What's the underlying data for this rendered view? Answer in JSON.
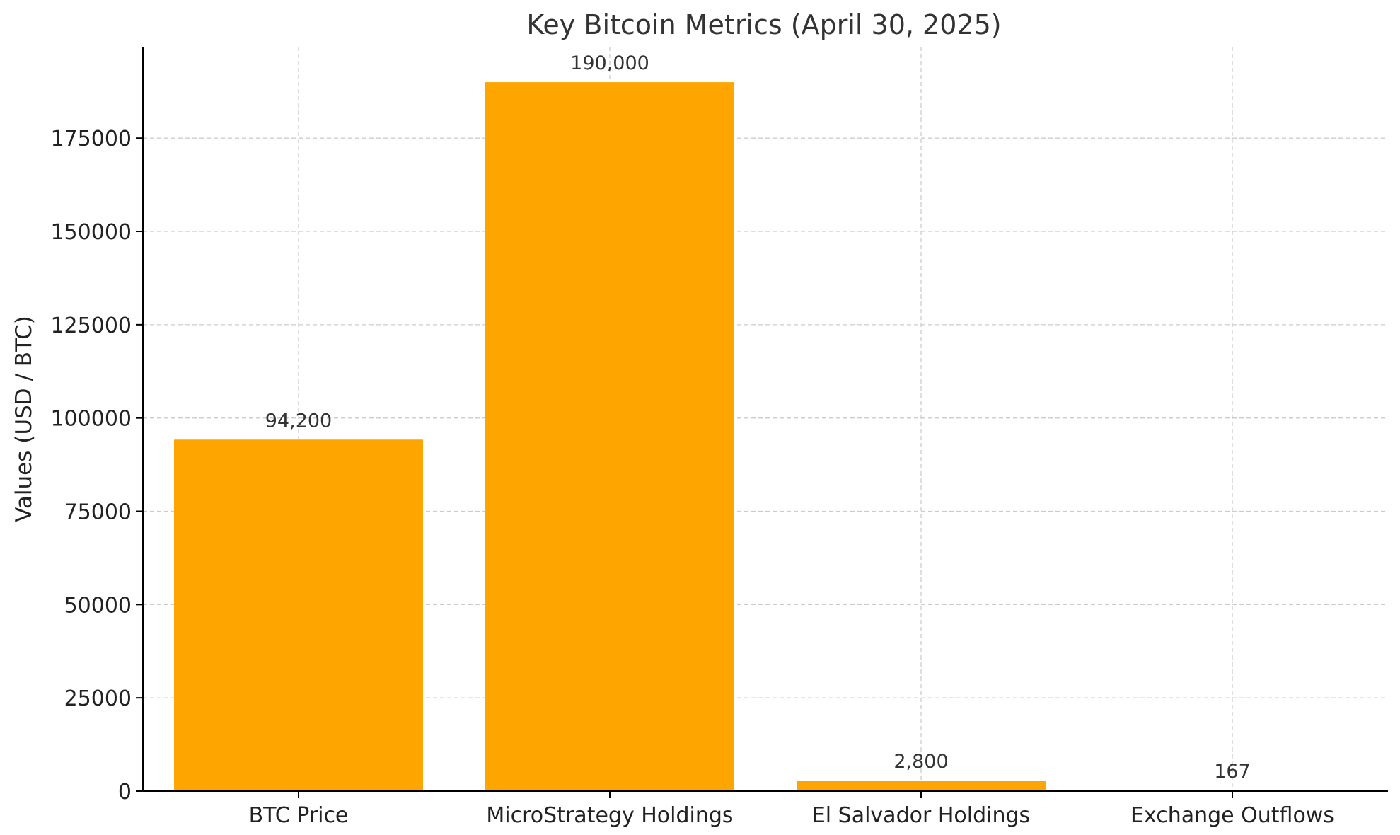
{
  "chart_data": {
    "type": "bar",
    "title": "Key Bitcoin Metrics (April 30, 2025)",
    "xlabel": "",
    "ylabel": "Values (USD / BTC)",
    "categories": [
      "BTC Price",
      "MicroStrategy Holdings",
      "El Salvador Holdings",
      "Exchange Outflows"
    ],
    "values": [
      94200,
      190000,
      2800,
      167
    ],
    "data_labels": [
      "94,200",
      "190,000",
      "2,800",
      "167"
    ],
    "ylim": [
      0,
      199500
    ],
    "yticks": [
      0,
      25000,
      50000,
      75000,
      100000,
      125000,
      150000,
      175000
    ],
    "ytick_labels": [
      "0",
      "25000",
      "50000",
      "75000",
      "100000",
      "125000",
      "150000",
      "175000"
    ],
    "grid": true,
    "bar_color": "#FFA500"
  }
}
